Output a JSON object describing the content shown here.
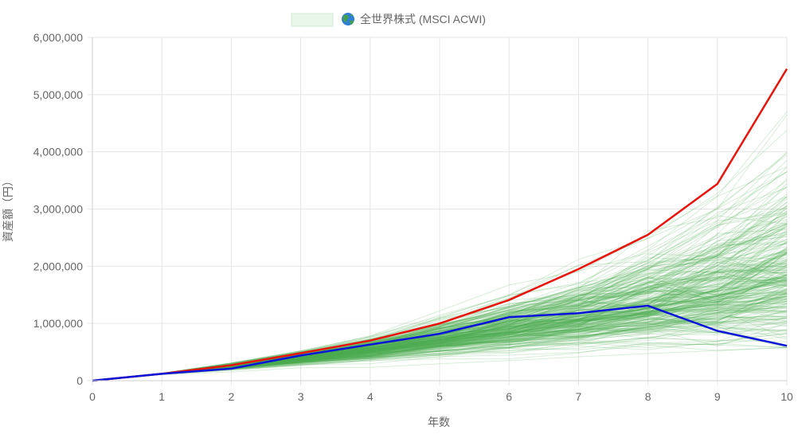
{
  "chart_data": {
    "type": "line",
    "legend": {
      "label": "全世界株式 (MSCI ACWI)",
      "icon": "globe-icon",
      "placement": "top-center"
    },
    "xlabel": "年数",
    "ylabel": "資産額（円）",
    "x": [
      0,
      1,
      2,
      3,
      4,
      5,
      6,
      7,
      8,
      9,
      10
    ],
    "xlim": [
      0,
      10
    ],
    "ylim": [
      0,
      6000000
    ],
    "x_ticks": [
      "0",
      "1",
      "2",
      "3",
      "4",
      "5",
      "6",
      "7",
      "8",
      "9",
      "10"
    ],
    "y_ticks": [
      "0",
      "1,000,000",
      "2,000,000",
      "3,000,000",
      "4,000,000",
      "5,000,000",
      "6,000,000"
    ],
    "y_tick_values": [
      0,
      1000000,
      2000000,
      3000000,
      4000000,
      5000000,
      6000000
    ],
    "grid": true,
    "series": [
      {
        "values": [
          0,
          120000,
          270000,
          480000,
          700000,
          1000000,
          1410000,
          1950000,
          2550000,
          3440000,
          5450000
        ],
        "color": "#e8140c"
      },
      {
        "values": [
          0,
          120000,
          210000,
          440000,
          630000,
          820000,
          1110000,
          1180000,
          1310000,
          870000,
          610000
        ],
        "color": "#0a14d8"
      }
    ],
    "simulation_band": {
      "color": "#4caf50",
      "path_count": 300,
      "median": [
        0,
        120000,
        250000,
        390000,
        540000,
        720000,
        900000,
        1080000,
        1280000,
        1520000,
        1850000
      ],
      "p05": [
        0,
        115000,
        215000,
        320000,
        420000,
        540000,
        640000,
        760000,
        860000,
        960000,
        1050000
      ],
      "p95": [
        0,
        125000,
        290000,
        480000,
        700000,
        980000,
        1300000,
        1650000,
        2100000,
        2650000,
        3400000
      ],
      "max": [
        0,
        130000,
        310000,
        520000,
        780000,
        1300000,
        1800000,
        2600000,
        3100000,
        4400000,
        4700000
      ]
    }
  }
}
